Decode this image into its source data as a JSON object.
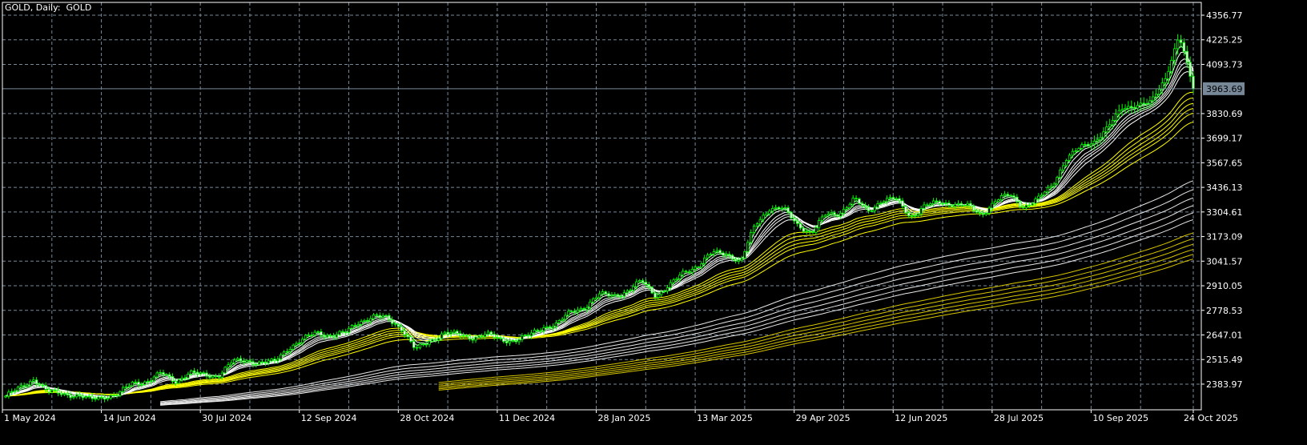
{
  "header": {
    "title": "GOLD, Daily:  GOLD"
  },
  "colors": {
    "background": "#000000",
    "grid": "#778899",
    "candle": "#00ff00",
    "ma_fast": "#ffffff",
    "ma_yellow": "#ffff00",
    "price_line": "#778899"
  },
  "chart_data": {
    "type": "candlestick",
    "symbol": "GOLD",
    "timeframe": "Daily",
    "grid": true,
    "ylim": [
      2320,
      4420
    ],
    "y_ticks": [
      "4356.77",
      "4225.25",
      "4093.73",
      "3830.69",
      "3699.17",
      "3567.65",
      "3436.13",
      "3304.61",
      "3173.09",
      "3041.57",
      "2910.05",
      "2778.53",
      "2647.01",
      "2515.49",
      "2383.97"
    ],
    "current_price": "3963.69",
    "x_ticks": [
      "1 May 2024",
      "14 Jun 2024",
      "30 Jul 2024",
      "12 Sep 2024",
      "28 Oct 2024",
      "11 Dec 2024",
      "28 Jan 2025",
      "13 Mar 2025",
      "29 Apr 2025",
      "12 Jun 2025",
      "28 Jul 2025",
      "10 Sep 2025",
      "24 Oct 2025"
    ],
    "weekly_close_points": [
      2320,
      2360,
      2415,
      2340,
      2335,
      2325,
      2300,
      2320,
      2330,
      2390,
      2400,
      2440,
      2400,
      2445,
      2430,
      2430,
      2500,
      2510,
      2500,
      2500,
      2580,
      2620,
      2660,
      2645,
      2655,
      2720,
      2745,
      2735,
      2685,
      2565,
      2615,
      2660,
      2645,
      2635,
      2650,
      2620,
      2620,
      2640,
      2690,
      2705,
      2770,
      2800,
      2860,
      2860,
      2880,
      2935,
      2860,
      2910,
      2985,
      3020,
      3085,
      3085,
      3035,
      3235,
      3325,
      3320,
      3240,
      3190,
      3290,
      3300,
      3370,
      3310,
      3370,
      3370,
      3280,
      3335,
      3355,
      3350,
      3335,
      3290,
      3365,
      3395,
      3335,
      3370,
      3445,
      3590,
      3645,
      3685,
      3760,
      3860,
      3880,
      3885,
      4015,
      4250,
      3963.69
    ]
  }
}
